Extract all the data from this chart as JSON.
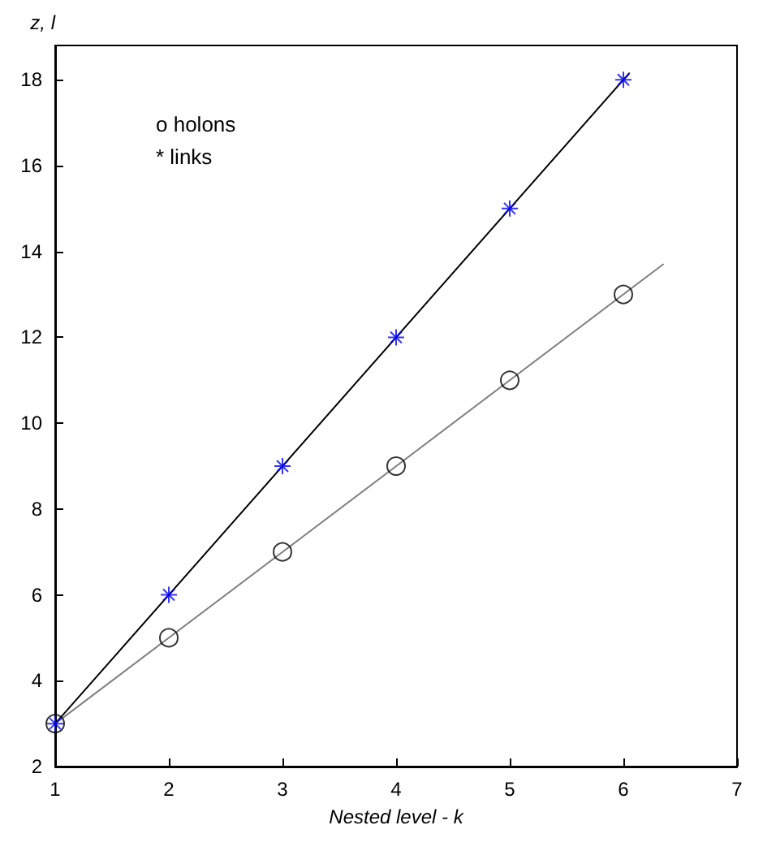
{
  "chart_data": {
    "type": "scatter",
    "xlabel": "Nested level - k",
    "ylabel": "z, l",
    "annotations": [
      "o holons",
      "* links"
    ],
    "xlim": [
      1,
      7
    ],
    "xticks": [
      1,
      2,
      3,
      4,
      5,
      6,
      7
    ],
    "ylim": [
      2,
      18.8
    ],
    "yticks": [
      2,
      4,
      6,
      8,
      10,
      12,
      14,
      16,
      18
    ],
    "grid": false,
    "line_style": "solid",
    "series": [
      {
        "type": "line",
        "x": [
          1,
          6.35
        ],
        "values": [
          3,
          13.7
        ],
        "color": "#808080",
        "marker": "none"
      },
      {
        "type": "line",
        "x": [
          1,
          6.05
        ],
        "values": [
          3,
          18.15
        ],
        "color": "#000000",
        "marker": "none"
      },
      {
        "type": "scatter",
        "x": [
          1,
          2,
          3,
          4,
          5,
          6
        ],
        "values": [
          3,
          5,
          7,
          9,
          11,
          13
        ],
        "color": "#000000",
        "marker": "circle"
      },
      {
        "type": "scatter",
        "x": [
          1,
          2,
          3,
          4,
          5,
          6
        ],
        "values": [
          3,
          6,
          9,
          12,
          15,
          18
        ],
        "color": "#0000ff",
        "marker": "cross"
      }
    ]
  }
}
